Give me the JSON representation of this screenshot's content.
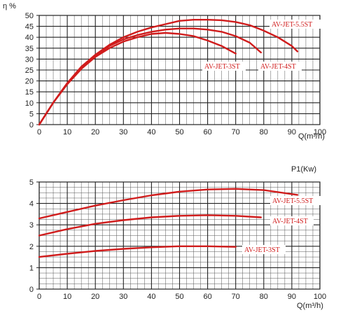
{
  "chart_data": [
    {
      "type": "line",
      "title": "",
      "xlabel": "Q(m³/h)",
      "ylabel": "η %",
      "xlim": [
        0,
        100
      ],
      "ylim": [
        0,
        50
      ],
      "grid": true,
      "x_ticks": [
        "0",
        "10",
        "20",
        "30",
        "40",
        "50",
        "60",
        "70",
        "80",
        "90",
        "100"
      ],
      "y_ticks": [
        "0",
        "5",
        "10",
        "15",
        "20",
        "25",
        "30",
        "35",
        "40",
        "45",
        "50"
      ],
      "series": [
        {
          "name": "AV-JET-3ST",
          "x": [
            0,
            5,
            10,
            15,
            20,
            25,
            30,
            35,
            40,
            45,
            50,
            55,
            60,
            65,
            70
          ],
          "y": [
            0,
            10,
            18.5,
            25.5,
            31,
            35,
            38,
            40,
            41.5,
            42,
            41.5,
            40.5,
            38.5,
            36,
            32.5
          ]
        },
        {
          "name": "AV-JET-4ST",
          "x": [
            0,
            5,
            10,
            15,
            20,
            25,
            30,
            35,
            40,
            45,
            50,
            55,
            60,
            65,
            70,
            75,
            79
          ],
          "y": [
            0,
            10,
            19,
            26,
            31.5,
            36,
            39,
            41,
            42.5,
            43.5,
            44,
            44,
            43.5,
            42.5,
            40.5,
            37.5,
            33
          ]
        },
        {
          "name": "AV-JET-5.5ST",
          "x": [
            0,
            5,
            10,
            15,
            20,
            25,
            30,
            35,
            40,
            45,
            50,
            55,
            60,
            65,
            70,
            75,
            80,
            85,
            90,
            92
          ],
          "y": [
            0,
            10,
            19,
            26.5,
            32,
            36.5,
            40,
            42.5,
            44.5,
            46,
            47.5,
            48,
            48,
            47.8,
            47,
            45.5,
            43,
            40,
            36,
            33.5
          ]
        }
      ],
      "colors": {
        "curve": "#d01c1c",
        "grid": "#555555"
      }
    },
    {
      "type": "line",
      "title": "",
      "xlabel": "Q(m³/h)",
      "ylabel": "P1(Kw)",
      "xlim": [
        0,
        100
      ],
      "ylim": [
        0,
        5
      ],
      "grid": true,
      "x_ticks": [
        "0",
        "10",
        "20",
        "30",
        "40",
        "50",
        "60",
        "70",
        "80",
        "90",
        "100"
      ],
      "y_ticks": [
        "0",
        "1",
        "2",
        "3",
        "4",
        "5"
      ],
      "series": [
        {
          "name": "AV-JET-3ST",
          "x": [
            0,
            10,
            20,
            30,
            40,
            50,
            60,
            70
          ],
          "y": [
            1.5,
            1.65,
            1.78,
            1.88,
            1.95,
            2.0,
            2.0,
            1.97
          ]
        },
        {
          "name": "AV-JET-4ST",
          "x": [
            0,
            10,
            20,
            30,
            40,
            50,
            60,
            70,
            79
          ],
          "y": [
            2.5,
            2.8,
            3.05,
            3.22,
            3.35,
            3.42,
            3.45,
            3.42,
            3.35
          ]
        },
        {
          "name": "AV-JET-5.5ST",
          "x": [
            0,
            10,
            20,
            30,
            40,
            50,
            60,
            70,
            80,
            92
          ],
          "y": [
            3.3,
            3.6,
            3.9,
            4.15,
            4.38,
            4.55,
            4.65,
            4.68,
            4.62,
            4.4
          ]
        }
      ],
      "colors": {
        "curve": "#d01c1c",
        "grid": "#555555"
      }
    }
  ]
}
